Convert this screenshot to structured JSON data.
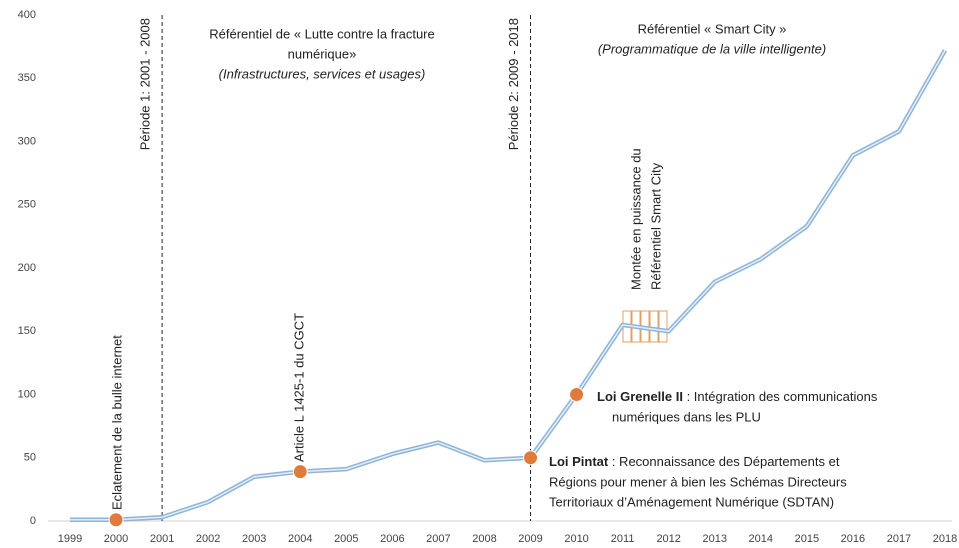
{
  "chart_data": {
    "type": "line",
    "categories": [
      "1999",
      "2000",
      "2001",
      "2002",
      "2003",
      "2004",
      "2005",
      "2006",
      "2007",
      "2008",
      "2009",
      "2010",
      "2011",
      "2012",
      "2013",
      "2014",
      "2015",
      "2016",
      "2017",
      "2018"
    ],
    "values": [
      1,
      1,
      3,
      15,
      35,
      39,
      41,
      53,
      62,
      48,
      50,
      100,
      155,
      150,
      189,
      207,
      233,
      289,
      308,
      372
    ],
    "color": "#8fb4d6",
    "marker_color": "#e07b3c",
    "markers": [
      "2000",
      "2004",
      "2009",
      "2010"
    ],
    "ylim": [
      0,
      400
    ],
    "yticks": [
      0,
      50,
      100,
      150,
      200,
      250,
      300,
      350,
      400
    ],
    "periods": [
      {
        "label": "Période 1: 2001 - 2008",
        "start": "2001"
      },
      {
        "label": "Période 2: 2009 - 2018",
        "start": "2009"
      }
    ],
    "referentials": [
      {
        "lines": [
          "Référentiel de « Lutte contre la fracture",
          "numérique»"
        ],
        "subtitle": "(Infrastructures, services et usages)"
      },
      {
        "lines": [
          "Référentiel « Smart City »"
        ],
        "subtitle": "(Programmatique de la ville intelligente)"
      }
    ],
    "events": [
      {
        "lines": [
          "Eclatement de la bulle internet"
        ]
      },
      {
        "lines": [
          "Article L 1425-1  du CGCT"
        ]
      },
      {
        "lines": [
          "Montée en puissance du",
          "Référentiel Smart City"
        ]
      }
    ],
    "laws": [
      {
        "title": "Loi Grenelle II",
        "lines": [
          " : Intégration des communications",
          "numériques dans les PLU"
        ]
      },
      {
        "title": "Loi Pintat",
        "lines": [
          " : Reconnaissance des Départements et",
          "Régions pour mener à bien les Schémas Directeurs",
          "Territoriaux d’Aménagement Numérique (SDTAN)"
        ]
      }
    ]
  }
}
